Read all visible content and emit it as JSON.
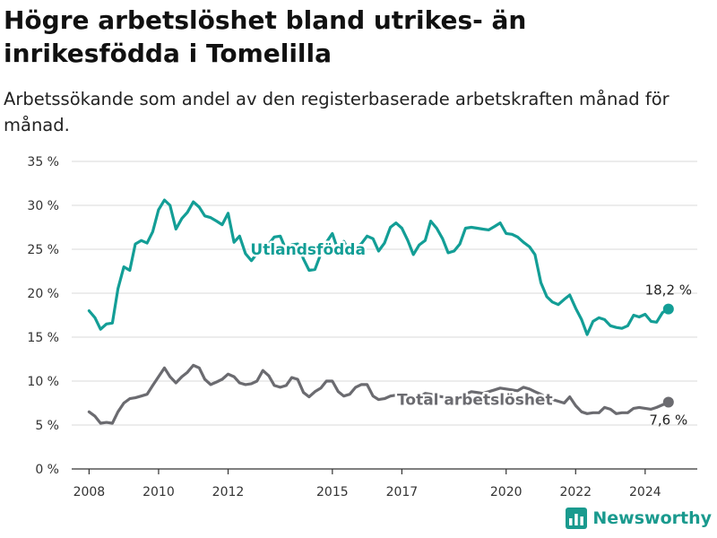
{
  "title": "Högre arbetslöshet bland utrikes- än inrikesfödda i Tomelilla",
  "subtitle": "Arbetssökande som andel av den registerbaserade arbetskraften månad för månad.",
  "brand": {
    "name": "Newsworthy",
    "icon": "bar-chart-logo-icon",
    "color": "#1a9a8e"
  },
  "colors": {
    "utlandsfodda": "#139e96",
    "total": "#6b6b70",
    "grid": "#d9d9d9",
    "axis": "#333333"
  },
  "chart_data": {
    "type": "line",
    "xlabel": "",
    "ylabel": "",
    "x_range": [
      2007.5,
      2025.5
    ],
    "ylim": [
      0,
      35
    ],
    "y_ticks": [
      0,
      5,
      10,
      15,
      20,
      25,
      30,
      35
    ],
    "y_tick_labels": [
      "0 %",
      "5 %",
      "10 %",
      "15 %",
      "20 %",
      "25 %",
      "30 %",
      "35 %"
    ],
    "x_ticks": [
      2008,
      2010,
      2012,
      2015,
      2017,
      2020,
      2022,
      2024
    ],
    "x_tick_labels": [
      "2008",
      "2010",
      "2012",
      "2015",
      "2017",
      "2020",
      "2022",
      "2024"
    ],
    "grid": true,
    "legend": "inline labels on lines",
    "series": [
      {
        "name": "Utlandsfödda",
        "color": "#139e96",
        "last_label": "18,2 %",
        "points": [
          [
            2008.0,
            18.0
          ],
          [
            2008.17,
            17.2
          ],
          [
            2008.33,
            15.9
          ],
          [
            2008.5,
            16.5
          ],
          [
            2008.67,
            16.6
          ],
          [
            2008.83,
            20.5
          ],
          [
            2009.0,
            23.0
          ],
          [
            2009.17,
            22.6
          ],
          [
            2009.33,
            25.6
          ],
          [
            2009.5,
            26.0
          ],
          [
            2009.67,
            25.7
          ],
          [
            2009.83,
            27.0
          ],
          [
            2010.0,
            29.5
          ],
          [
            2010.17,
            30.6
          ],
          [
            2010.33,
            30.0
          ],
          [
            2010.5,
            27.3
          ],
          [
            2010.67,
            28.5
          ],
          [
            2010.83,
            29.2
          ],
          [
            2011.0,
            30.4
          ],
          [
            2011.17,
            29.8
          ],
          [
            2011.33,
            28.8
          ],
          [
            2011.5,
            28.6
          ],
          [
            2011.67,
            28.2
          ],
          [
            2011.83,
            27.8
          ],
          [
            2012.0,
            29.1
          ],
          [
            2012.17,
            25.8
          ],
          [
            2012.33,
            26.5
          ],
          [
            2012.5,
            24.5
          ],
          [
            2012.67,
            23.7
          ],
          [
            2012.83,
            24.5
          ],
          [
            2013.0,
            25.0
          ],
          [
            2013.17,
            25.6
          ],
          [
            2013.33,
            26.4
          ],
          [
            2013.5,
            26.5
          ],
          [
            2013.67,
            24.9
          ],
          [
            2013.83,
            25.5
          ],
          [
            2014.0,
            25.6
          ],
          [
            2014.17,
            23.9
          ],
          [
            2014.33,
            22.6
          ],
          [
            2014.5,
            22.7
          ],
          [
            2014.67,
            24.5
          ],
          [
            2014.83,
            25.8
          ],
          [
            2015.0,
            26.8
          ],
          [
            2015.17,
            24.8
          ],
          [
            2015.33,
            25.9
          ],
          [
            2015.5,
            24.7
          ],
          [
            2015.67,
            25.2
          ],
          [
            2015.83,
            25.6
          ],
          [
            2016.0,
            26.5
          ],
          [
            2016.17,
            26.2
          ],
          [
            2016.33,
            24.8
          ],
          [
            2016.5,
            25.7
          ],
          [
            2016.67,
            27.5
          ],
          [
            2016.83,
            28.0
          ],
          [
            2017.0,
            27.4
          ],
          [
            2017.17,
            26.0
          ],
          [
            2017.33,
            24.4
          ],
          [
            2017.5,
            25.5
          ],
          [
            2017.67,
            26.0
          ],
          [
            2017.83,
            28.2
          ],
          [
            2018.0,
            27.4
          ],
          [
            2018.17,
            26.2
          ],
          [
            2018.33,
            24.6
          ],
          [
            2018.5,
            24.8
          ],
          [
            2018.67,
            25.6
          ],
          [
            2018.83,
            27.4
          ],
          [
            2019.0,
            27.5
          ],
          [
            2019.17,
            27.4
          ],
          [
            2019.33,
            27.3
          ],
          [
            2019.5,
            27.2
          ],
          [
            2019.67,
            27.6
          ],
          [
            2019.83,
            28.0
          ],
          [
            2020.0,
            26.8
          ],
          [
            2020.17,
            26.7
          ],
          [
            2020.33,
            26.4
          ],
          [
            2020.5,
            25.8
          ],
          [
            2020.67,
            25.3
          ],
          [
            2020.83,
            24.4
          ],
          [
            2021.0,
            21.2
          ],
          [
            2021.17,
            19.6
          ],
          [
            2021.33,
            19.0
          ],
          [
            2021.5,
            18.7
          ],
          [
            2021.67,
            19.3
          ],
          [
            2021.83,
            19.8
          ],
          [
            2022.0,
            18.3
          ],
          [
            2022.17,
            17.0
          ],
          [
            2022.33,
            15.3
          ],
          [
            2022.5,
            16.8
          ],
          [
            2022.67,
            17.2
          ],
          [
            2022.83,
            17.0
          ],
          [
            2023.0,
            16.3
          ],
          [
            2023.17,
            16.1
          ],
          [
            2023.33,
            16.0
          ],
          [
            2023.5,
            16.3
          ],
          [
            2023.67,
            17.5
          ],
          [
            2023.83,
            17.3
          ],
          [
            2024.0,
            17.6
          ],
          [
            2024.17,
            16.8
          ],
          [
            2024.33,
            16.7
          ],
          [
            2024.5,
            17.8
          ],
          [
            2024.67,
            18.2
          ]
        ]
      },
      {
        "name": "Total arbetslöshet",
        "color": "#6b6b70",
        "last_label": "7,6 %",
        "points": [
          [
            2008.0,
            6.5
          ],
          [
            2008.17,
            6.0
          ],
          [
            2008.33,
            5.2
          ],
          [
            2008.5,
            5.3
          ],
          [
            2008.67,
            5.2
          ],
          [
            2008.83,
            6.5
          ],
          [
            2009.0,
            7.5
          ],
          [
            2009.17,
            8.0
          ],
          [
            2009.33,
            8.1
          ],
          [
            2009.5,
            8.3
          ],
          [
            2009.67,
            8.5
          ],
          [
            2009.83,
            9.5
          ],
          [
            2010.0,
            10.5
          ],
          [
            2010.17,
            11.5
          ],
          [
            2010.33,
            10.5
          ],
          [
            2010.5,
            9.8
          ],
          [
            2010.67,
            10.5
          ],
          [
            2010.83,
            11.0
          ],
          [
            2011.0,
            11.8
          ],
          [
            2011.17,
            11.5
          ],
          [
            2011.33,
            10.2
          ],
          [
            2011.5,
            9.6
          ],
          [
            2011.67,
            9.9
          ],
          [
            2011.83,
            10.2
          ],
          [
            2012.0,
            10.8
          ],
          [
            2012.17,
            10.5
          ],
          [
            2012.33,
            9.8
          ],
          [
            2012.5,
            9.6
          ],
          [
            2012.67,
            9.7
          ],
          [
            2012.83,
            10.0
          ],
          [
            2013.0,
            11.2
          ],
          [
            2013.17,
            10.6
          ],
          [
            2013.33,
            9.5
          ],
          [
            2013.5,
            9.3
          ],
          [
            2013.67,
            9.5
          ],
          [
            2013.83,
            10.4
          ],
          [
            2014.0,
            10.2
          ],
          [
            2014.17,
            8.7
          ],
          [
            2014.33,
            8.2
          ],
          [
            2014.5,
            8.8
          ],
          [
            2014.67,
            9.2
          ],
          [
            2014.83,
            10.0
          ],
          [
            2015.0,
            10.0
          ],
          [
            2015.17,
            8.8
          ],
          [
            2015.33,
            8.3
          ],
          [
            2015.5,
            8.5
          ],
          [
            2015.67,
            9.3
          ],
          [
            2015.83,
            9.6
          ],
          [
            2016.0,
            9.6
          ],
          [
            2016.17,
            8.3
          ],
          [
            2016.33,
            7.9
          ],
          [
            2016.5,
            8.0
          ],
          [
            2016.67,
            8.3
          ],
          [
            2016.83,
            8.4
          ],
          [
            2017.0,
            8.2
          ],
          [
            2017.17,
            8.1
          ],
          [
            2017.33,
            8.0
          ],
          [
            2017.5,
            8.2
          ],
          [
            2017.67,
            8.6
          ],
          [
            2017.83,
            8.5
          ],
          [
            2018.0,
            8.3
          ],
          [
            2018.17,
            8.2
          ],
          [
            2018.33,
            8.1
          ],
          [
            2018.5,
            8.2
          ],
          [
            2018.67,
            8.3
          ],
          [
            2018.83,
            8.5
          ],
          [
            2019.0,
            8.8
          ],
          [
            2019.17,
            8.7
          ],
          [
            2019.33,
            8.6
          ],
          [
            2019.5,
            8.8
          ],
          [
            2019.67,
            9.0
          ],
          [
            2019.83,
            9.2
          ],
          [
            2020.0,
            9.1
          ],
          [
            2020.17,
            9.0
          ],
          [
            2020.33,
            8.9
          ],
          [
            2020.5,
            9.3
          ],
          [
            2020.67,
            9.1
          ],
          [
            2020.83,
            8.8
          ],
          [
            2021.0,
            8.5
          ],
          [
            2021.17,
            8.1
          ],
          [
            2021.33,
            7.9
          ],
          [
            2021.5,
            7.7
          ],
          [
            2021.67,
            7.5
          ],
          [
            2021.83,
            8.2
          ],
          [
            2022.0,
            7.2
          ],
          [
            2022.17,
            6.5
          ],
          [
            2022.33,
            6.3
          ],
          [
            2022.5,
            6.4
          ],
          [
            2022.67,
            6.4
          ],
          [
            2022.83,
            7.0
          ],
          [
            2023.0,
            6.8
          ],
          [
            2023.17,
            6.3
          ],
          [
            2023.33,
            6.4
          ],
          [
            2023.5,
            6.4
          ],
          [
            2023.67,
            6.9
          ],
          [
            2023.83,
            7.0
          ],
          [
            2024.0,
            6.9
          ],
          [
            2024.17,
            6.8
          ],
          [
            2024.33,
            7.0
          ],
          [
            2024.5,
            7.3
          ],
          [
            2024.67,
            7.6
          ]
        ]
      }
    ]
  }
}
